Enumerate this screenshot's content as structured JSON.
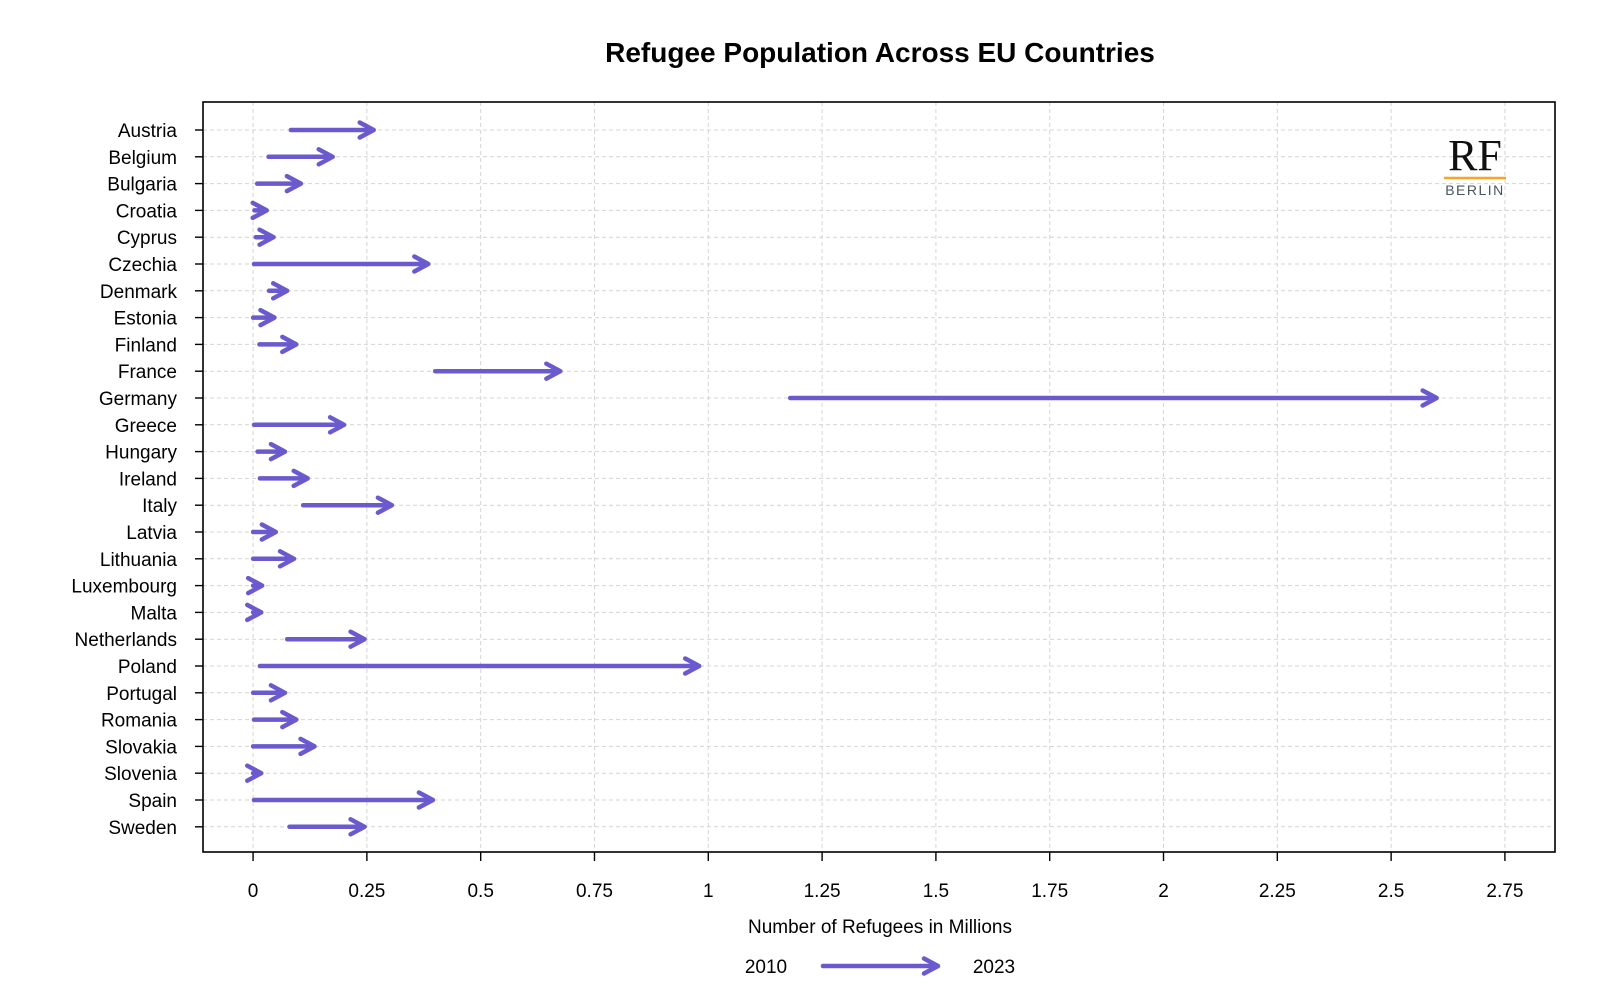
{
  "chart_data": {
    "type": "arrow",
    "title": "Refugee Population Across EU Countries",
    "xlabel": "Number of Refugees in Millions",
    "ylabel": "",
    "xlim": [
      -0.11,
      2.86
    ],
    "xticks": [
      0,
      0.25,
      0.5,
      0.75,
      1,
      1.25,
      1.5,
      1.75,
      2,
      2.25,
      2.5,
      2.75
    ],
    "xtick_labels": [
      "0",
      "0.25",
      "0.5",
      "0.75",
      "1",
      "1.25",
      "1.5",
      "1.75",
      "2",
      "2.25",
      "2.5",
      "2.75"
    ],
    "grid": true,
    "series_color": "#6a5acd",
    "legend": {
      "placement": "bottom",
      "start_label": "2010",
      "end_label": "2023"
    },
    "logo": {
      "main": "RF",
      "sub": "BERLIN",
      "accent_color": "#f5a623"
    },
    "categories": [
      "Austria",
      "Belgium",
      "Bulgaria",
      "Croatia",
      "Cyprus",
      "Czechia",
      "Denmark",
      "Estonia",
      "Finland",
      "France",
      "Germany",
      "Greece",
      "Hungary",
      "Ireland",
      "Italy",
      "Latvia",
      "Lithuania",
      "Luxembourg",
      "Malta",
      "Netherlands",
      "Poland",
      "Portugal",
      "Romania",
      "Slovakia",
      "Slovenia",
      "Spain",
      "Sweden"
    ],
    "series": [
      {
        "name": "2010",
        "values": [
          0.083,
          0.034,
          0.009,
          0.003,
          0.006,
          0.002,
          0.035,
          0.0,
          0.014,
          0.4,
          1.18,
          0.002,
          0.01,
          0.015,
          0.11,
          0.0,
          0.0,
          0.0,
          0.0,
          0.075,
          0.015,
          0.0,
          0.002,
          0.0,
          0.0,
          0.002,
          0.08
        ]
      },
      {
        "name": "2023",
        "values": [
          0.265,
          0.175,
          0.105,
          0.03,
          0.045,
          0.385,
          0.075,
          0.047,
          0.095,
          0.675,
          2.6,
          0.2,
          0.07,
          0.12,
          0.305,
          0.05,
          0.09,
          0.02,
          0.018,
          0.245,
          0.98,
          0.07,
          0.095,
          0.135,
          0.018,
          0.395,
          0.245
        ]
      }
    ]
  }
}
